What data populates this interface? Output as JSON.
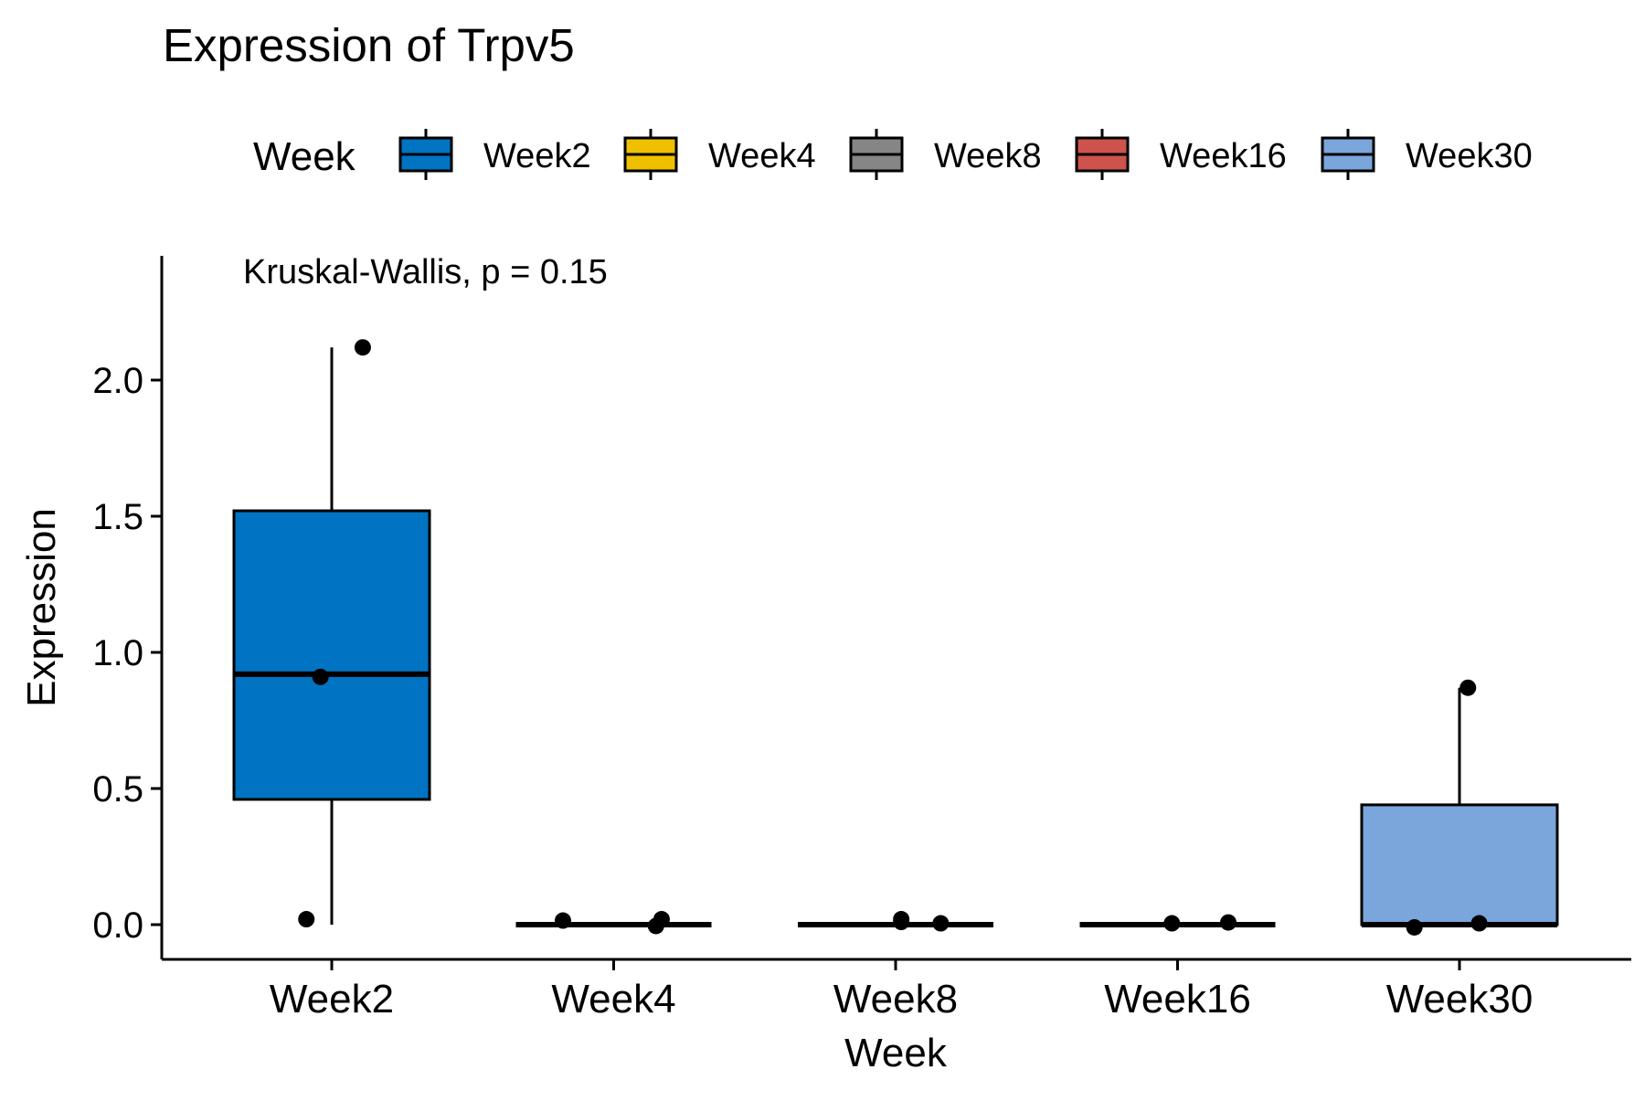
{
  "chart_data": {
    "type": "box",
    "title": "Expression of Trpv5",
    "xlabel": "Week",
    "ylabel": "Expression",
    "annotation": "Kruskal-Wallis, p = 0.15",
    "legend": {
      "title": "Week",
      "position": "top"
    },
    "ylim": [
      -0.13,
      2.45
    ],
    "yticks": [
      0.0,
      0.5,
      1.0,
      1.5,
      2.0
    ],
    "ytick_labels": [
      "0.0",
      "0.5",
      "1.0",
      "1.5",
      "2.0"
    ],
    "grid": false,
    "categories": [
      "Week2",
      "Week4",
      "Week8",
      "Week16",
      "Week30"
    ],
    "colors": [
      "#0073C2",
      "#EFC000",
      "#868686",
      "#CD534C",
      "#7AA6DC"
    ],
    "boxes": [
      {
        "category": "Week2",
        "whisker_low": 0.0,
        "q1": 0.46,
        "median": 0.92,
        "q3": 1.52,
        "whisker_high": 2.12
      },
      {
        "category": "Week4",
        "whisker_low": 0.0,
        "q1": 0.0,
        "median": 0.0,
        "q3": 0.0,
        "whisker_high": 0.0
      },
      {
        "category": "Week8",
        "whisker_low": 0.0,
        "q1": 0.0,
        "median": 0.0,
        "q3": 0.0,
        "whisker_high": 0.0
      },
      {
        "category": "Week16",
        "whisker_low": 0.0,
        "q1": 0.0,
        "median": 0.0,
        "q3": 0.0,
        "whisker_high": 0.0
      },
      {
        "category": "Week30",
        "whisker_low": 0.0,
        "q1": 0.0,
        "median": 0.0,
        "q3": 0.44,
        "whisker_high": 0.87
      }
    ],
    "points": [
      {
        "category": "Week2",
        "jitter": 0.11,
        "y": 2.12
      },
      {
        "category": "Week2",
        "jitter": -0.04,
        "y": 0.91
      },
      {
        "category": "Week2",
        "jitter": -0.09,
        "y": 0.02
      },
      {
        "category": "Week4",
        "jitter": -0.18,
        "y": 0.015
      },
      {
        "category": "Week4",
        "jitter": 0.17,
        "y": 0.02
      },
      {
        "category": "Week4",
        "jitter": 0.15,
        "y": -0.005
      },
      {
        "category": "Week8",
        "jitter": 0.02,
        "y": 0.02
      },
      {
        "category": "Week8",
        "jitter": 0.02,
        "y": 0.01
      },
      {
        "category": "Week8",
        "jitter": 0.16,
        "y": 0.005
      },
      {
        "category": "Week16",
        "jitter": -0.02,
        "y": 0.005
      },
      {
        "category": "Week16",
        "jitter": 0.18,
        "y": 0.008
      },
      {
        "category": "Week30",
        "jitter": 0.03,
        "y": 0.87
      },
      {
        "category": "Week30",
        "jitter": -0.16,
        "y": -0.01
      },
      {
        "category": "Week30",
        "jitter": 0.07,
        "y": 0.005
      }
    ]
  }
}
